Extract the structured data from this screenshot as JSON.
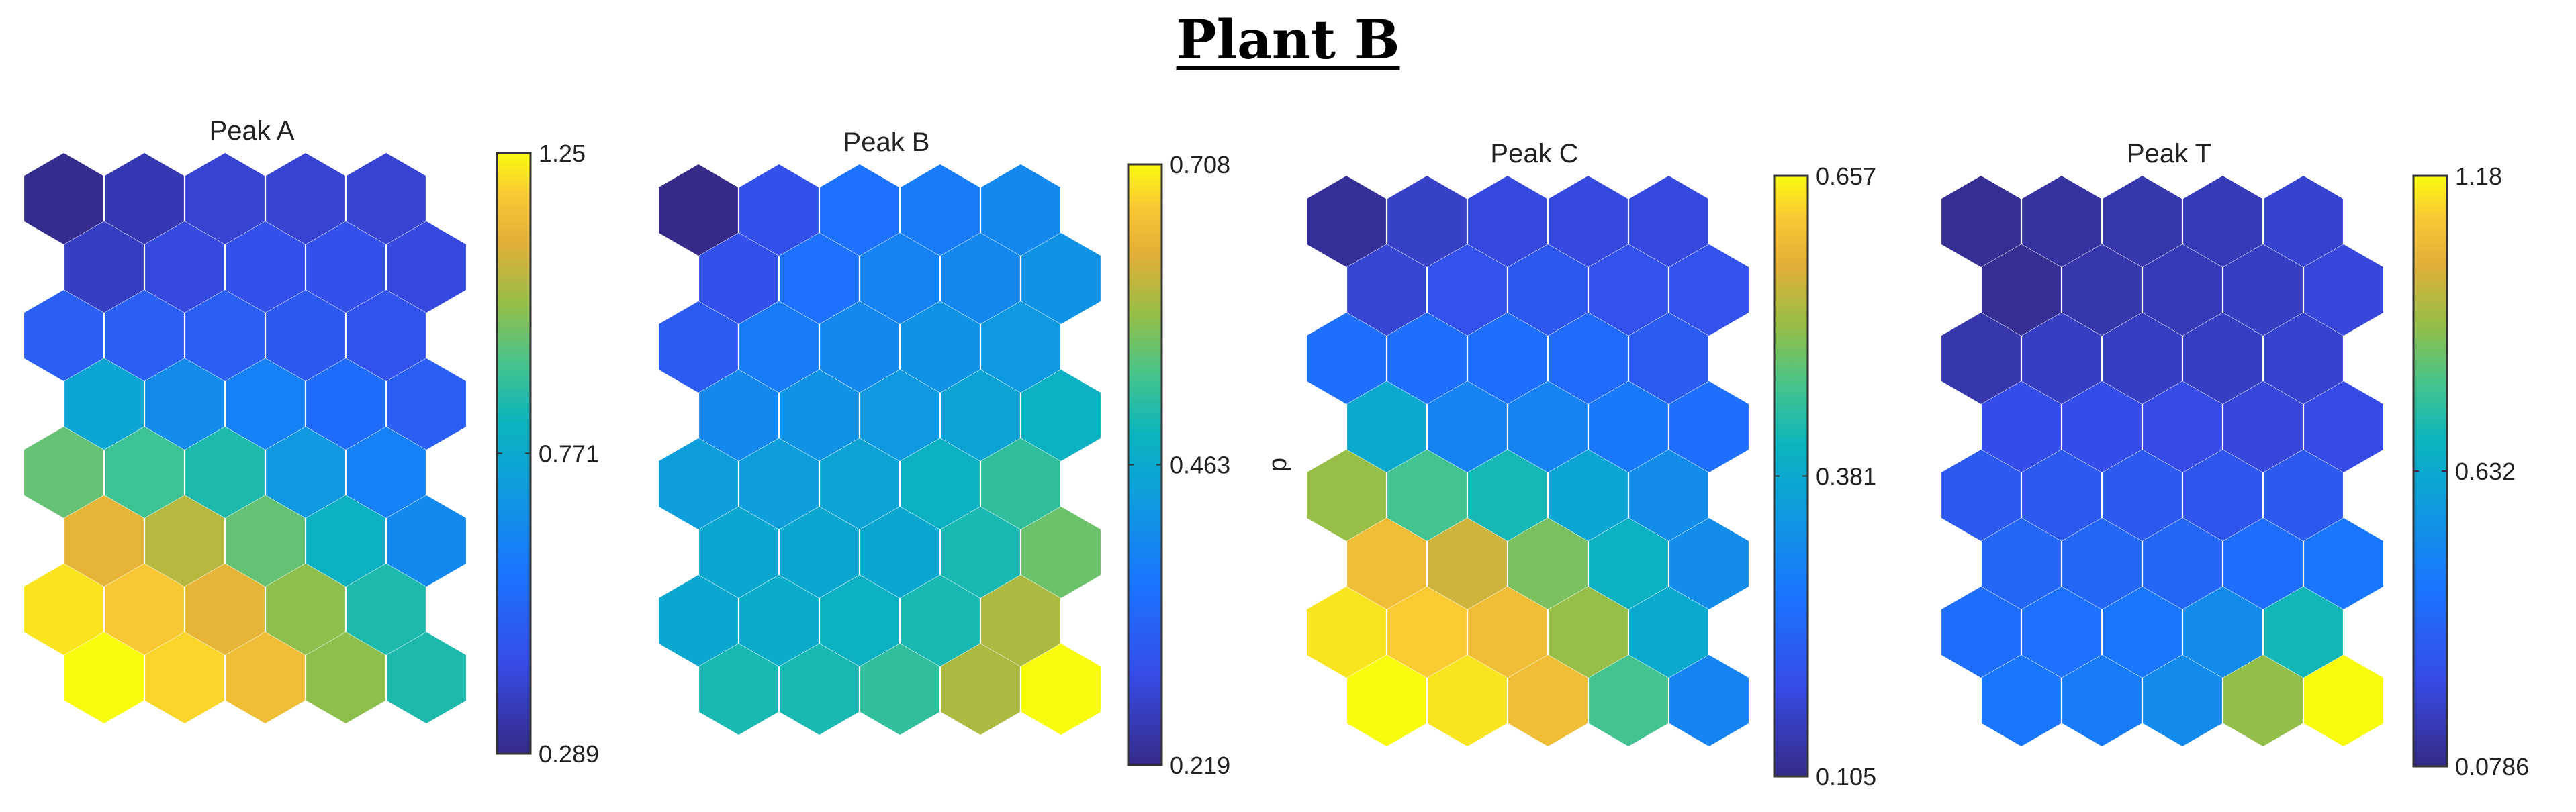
{
  "figure": {
    "title": "Plant B"
  },
  "chart_data": [
    {
      "type": "heatmap",
      "title": "Peak A",
      "grid": {
        "cols": 5,
        "rows": 8
      },
      "values": [
        [
          0.3,
          0.35,
          0.4,
          0.4,
          0.4
        ],
        [
          0.38,
          0.42,
          0.45,
          0.45,
          0.42
        ],
        [
          0.5,
          0.5,
          0.5,
          0.48,
          0.46
        ],
        [
          0.75,
          0.66,
          0.62,
          0.55,
          0.5
        ],
        [
          0.95,
          0.9,
          0.85,
          0.7,
          0.62
        ],
        [
          1.12,
          1.05,
          0.95,
          0.8,
          0.65
        ],
        [
          1.22,
          1.18,
          1.12,
          1.0,
          0.85
        ],
        [
          1.25,
          1.2,
          1.15,
          1.0,
          0.85
        ]
      ],
      "colorbar": {
        "min": 0.289,
        "max": 1.25,
        "ticks": [
          "1.25",
          "0.771",
          "0.289"
        ],
        "label": ""
      }
    },
    {
      "type": "heatmap",
      "title": "Peak B",
      "grid": {
        "cols": 5,
        "rows": 8
      },
      "values": [
        [
          0.219,
          0.3,
          0.36,
          0.38,
          0.4
        ],
        [
          0.3,
          0.36,
          0.39,
          0.4,
          0.42
        ],
        [
          0.32,
          0.38,
          0.4,
          0.42,
          0.43
        ],
        [
          0.4,
          0.42,
          0.43,
          0.45,
          0.48
        ],
        [
          0.44,
          0.44,
          0.45,
          0.48,
          0.52
        ],
        [
          0.46,
          0.46,
          0.46,
          0.5,
          0.56
        ],
        [
          0.46,
          0.47,
          0.48,
          0.5,
          0.6
        ],
        [
          0.5,
          0.5,
          0.52,
          0.6,
          0.708
        ]
      ],
      "colorbar": {
        "min": 0.219,
        "max": 0.708,
        "ticks": [
          "0.708",
          "0.463",
          "0.219"
        ],
        "label": "d"
      }
    },
    {
      "type": "heatmap",
      "title": "Peak C",
      "grid": {
        "cols": 5,
        "rows": 8
      },
      "values": [
        [
          0.12,
          0.16,
          0.18,
          0.18,
          0.18
        ],
        [
          0.17,
          0.2,
          0.21,
          0.2,
          0.2
        ],
        [
          0.26,
          0.26,
          0.26,
          0.25,
          0.22
        ],
        [
          0.38,
          0.3,
          0.3,
          0.28,
          0.26
        ],
        [
          0.52,
          0.46,
          0.42,
          0.37,
          0.32
        ],
        [
          0.6,
          0.56,
          0.5,
          0.4,
          0.32
        ],
        [
          0.64,
          0.62,
          0.6,
          0.52,
          0.38
        ],
        [
          0.657,
          0.64,
          0.6,
          0.46,
          0.3
        ]
      ],
      "colorbar": {
        "min": 0.105,
        "max": 0.657,
        "ticks": [
          "0.657",
          "0.381",
          "0.105"
        ],
        "label": ""
      }
    },
    {
      "type": "heatmap",
      "title": "Peak T",
      "grid": {
        "cols": 5,
        "rows": 8
      },
      "values": [
        [
          0.1,
          0.12,
          0.14,
          0.16,
          0.2
        ],
        [
          0.1,
          0.14,
          0.16,
          0.18,
          0.22
        ],
        [
          0.14,
          0.18,
          0.18,
          0.18,
          0.2
        ],
        [
          0.25,
          0.25,
          0.24,
          0.22,
          0.24
        ],
        [
          0.3,
          0.3,
          0.3,
          0.28,
          0.3
        ],
        [
          0.35,
          0.35,
          0.35,
          0.38,
          0.42
        ],
        [
          0.38,
          0.4,
          0.42,
          0.5,
          0.7
        ],
        [
          0.42,
          0.44,
          0.5,
          0.9,
          1.18
        ]
      ],
      "colorbar": {
        "min": 0.0786,
        "max": 1.18,
        "ticks": [
          "1.18",
          "0.632",
          "0.0786"
        ],
        "label": ""
      }
    }
  ]
}
